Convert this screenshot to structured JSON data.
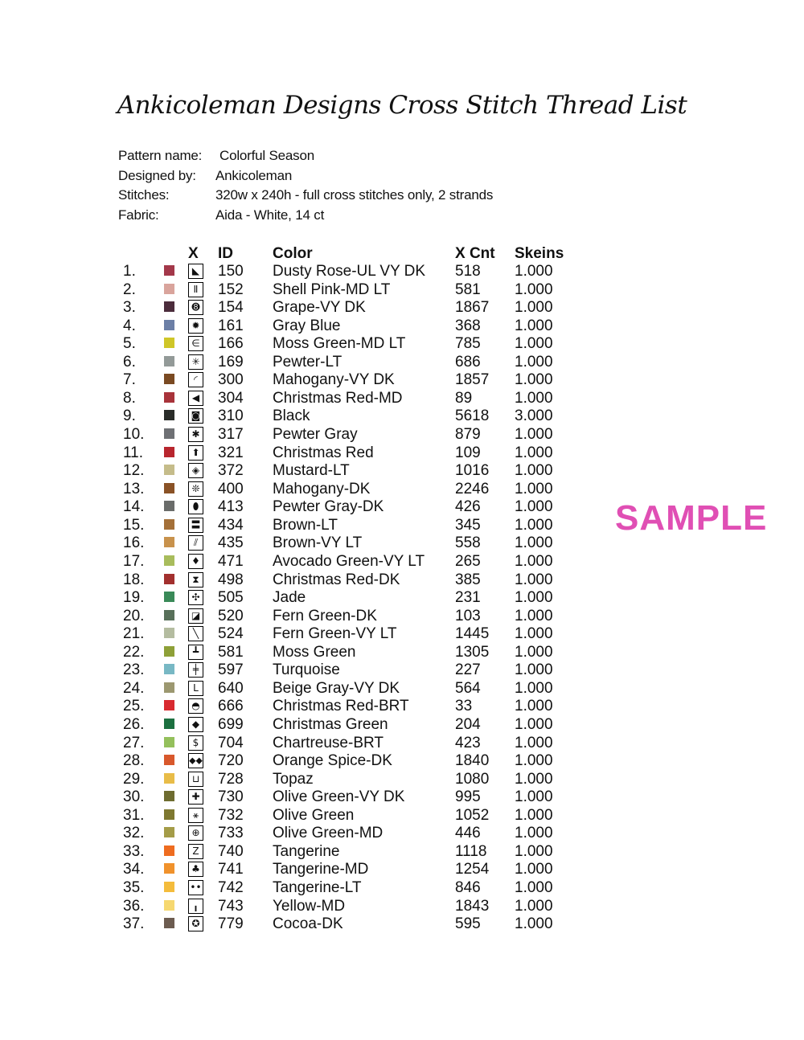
{
  "title": "Ankicoleman Designs Cross Stitch Thread List",
  "meta": [
    {
      "label": "Pattern name:",
      "value": "Colorful Season"
    },
    {
      "label": "Designed by:",
      "value": "Ankicoleman"
    },
    {
      "label": "Stitches:",
      "value": "320w x 240h - full cross stitches only, 2 strands"
    },
    {
      "label": "Fabric:",
      "value": "Aida - White, 14 ct"
    }
  ],
  "headers": {
    "symbol": "X",
    "id": "ID",
    "color": "Color",
    "count": "X Cnt",
    "skeins": "Skeins"
  },
  "watermark": "SAMPLE",
  "rows": [
    {
      "n": "1.",
      "swatch": "#a3384a",
      "symbol": "◣",
      "id": "150",
      "name": "Dusty Rose-UL VY DK",
      "count": "518",
      "skeins": "1.000"
    },
    {
      "n": "2.",
      "swatch": "#d9a49c",
      "symbol": "Ⅱ",
      "id": "152",
      "name": "Shell Pink-MD LT",
      "count": "581",
      "skeins": "1.000"
    },
    {
      "n": "3.",
      "swatch": "#4c2c3c",
      "symbol": "➑",
      "id": "154",
      "name": "Grape-VY DK",
      "count": "1867",
      "skeins": "1.000"
    },
    {
      "n": "4.",
      "swatch": "#6c7fa6",
      "symbol": "✹",
      "id": "161",
      "name": "Gray Blue",
      "count": "368",
      "skeins": "1.000"
    },
    {
      "n": "5.",
      "swatch": "#cfc628",
      "symbol": "∈",
      "id": "166",
      "name": "Moss Green-MD LT",
      "count": "785",
      "skeins": "1.000"
    },
    {
      "n": "6.",
      "swatch": "#939a98",
      "symbol": "✳",
      "id": "169",
      "name": "Pewter-LT",
      "count": "686",
      "skeins": "1.000"
    },
    {
      "n": "7.",
      "swatch": "#7a4a22",
      "symbol": "◜",
      "id": "300",
      "name": "Mahogany-VY DK",
      "count": "1857",
      "skeins": "1.000"
    },
    {
      "n": "8.",
      "swatch": "#a8333a",
      "symbol": "◀",
      "id": "304",
      "name": "Christmas Red-MD",
      "count": "89",
      "skeins": "1.000"
    },
    {
      "n": "9.",
      "swatch": "#2a2c29",
      "symbol": "◙",
      "id": "310",
      "name": "Black",
      "count": "5618",
      "skeins": "3.000"
    },
    {
      "n": "10.",
      "swatch": "#6e7074",
      "symbol": "✱",
      "id": "317",
      "name": "Pewter Gray",
      "count": "879",
      "skeins": "1.000"
    },
    {
      "n": "11.",
      "swatch": "#b8262e",
      "symbol": "⬆",
      "id": "321",
      "name": "Christmas Red",
      "count": "109",
      "skeins": "1.000"
    },
    {
      "n": "12.",
      "swatch": "#c5bc8a",
      "symbol": "◈",
      "id": "372",
      "name": "Mustard-LT",
      "count": "1016",
      "skeins": "1.000"
    },
    {
      "n": "13.",
      "swatch": "#8a5226",
      "symbol": "❊",
      "id": "400",
      "name": "Mahogany-DK",
      "count": "2246",
      "skeins": "1.000"
    },
    {
      "n": "14.",
      "swatch": "#6a6c6a",
      "symbol": "⬮",
      "id": "413",
      "name": "Pewter Gray-DK",
      "count": "426",
      "skeins": "1.000"
    },
    {
      "n": "15.",
      "swatch": "#a47038",
      "symbol": "〓",
      "id": "434",
      "name": "Brown-LT",
      "count": "345",
      "skeins": "1.000"
    },
    {
      "n": "16.",
      "swatch": "#c8924c",
      "symbol": "⫽",
      "id": "435",
      "name": "Brown-VY LT",
      "count": "558",
      "skeins": "1.000"
    },
    {
      "n": "17.",
      "swatch": "#a8bc5c",
      "symbol": "♦",
      "id": "471",
      "name": "Avocado Green-VY LT",
      "count": "265",
      "skeins": "1.000"
    },
    {
      "n": "18.",
      "swatch": "#a2302e",
      "symbol": "⧗",
      "id": "498",
      "name": "Christmas Red-DK",
      "count": "385",
      "skeins": "1.000"
    },
    {
      "n": "19.",
      "swatch": "#3a8a58",
      "symbol": "✣",
      "id": "505",
      "name": "Jade",
      "count": "231",
      "skeins": "1.000"
    },
    {
      "n": "20.",
      "swatch": "#58705a",
      "symbol": "◪",
      "id": "520",
      "name": "Fern Green-DK",
      "count": "103",
      "skeins": "1.000"
    },
    {
      "n": "21.",
      "swatch": "#b4bca0",
      "symbol": "╲",
      "id": "524",
      "name": "Fern Green-VY LT",
      "count": "1445",
      "skeins": "1.000"
    },
    {
      "n": "22.",
      "swatch": "#8ea038",
      "symbol": "┻",
      "id": "581",
      "name": "Moss Green",
      "count": "1305",
      "skeins": "1.000"
    },
    {
      "n": "23.",
      "swatch": "#78b8c4",
      "symbol": "╪",
      "id": "597",
      "name": "Turquoise",
      "count": "227",
      "skeins": "1.000"
    },
    {
      "n": "24.",
      "swatch": "#9c9870",
      "symbol": "L",
      "id": "640",
      "name": "Beige Gray-VY DK",
      "count": "564",
      "skeins": "1.000"
    },
    {
      "n": "25.",
      "swatch": "#d82a30",
      "symbol": "◓",
      "id": "666",
      "name": "Christmas Red-BRT",
      "count": "33",
      "skeins": "1.000"
    },
    {
      "n": "26.",
      "swatch": "#1c7040",
      "symbol": "◆",
      "id": "699",
      "name": "Christmas Green",
      "count": "204",
      "skeins": "1.000"
    },
    {
      "n": "27.",
      "swatch": "#94c05c",
      "symbol": "$",
      "id": "704",
      "name": "Chartreuse-BRT",
      "count": "423",
      "skeins": "1.000"
    },
    {
      "n": "28.",
      "swatch": "#d8582c",
      "symbol": "⬥⬥",
      "id": "720",
      "name": "Orange Spice-DK",
      "count": "1840",
      "skeins": "1.000"
    },
    {
      "n": "29.",
      "swatch": "#e8bc48",
      "symbol": "⊔",
      "id": "728",
      "name": "Topaz",
      "count": "1080",
      "skeins": "1.000"
    },
    {
      "n": "30.",
      "swatch": "#6e6c30",
      "symbol": "✚",
      "id": "730",
      "name": "Olive Green-VY DK",
      "count": "995",
      "skeins": "1.000"
    },
    {
      "n": "31.",
      "swatch": "#7e7830",
      "symbol": "⚹",
      "id": "732",
      "name": "Olive Green",
      "count": "1052",
      "skeins": "1.000"
    },
    {
      "n": "32.",
      "swatch": "#a49c48",
      "symbol": "⊕",
      "id": "733",
      "name": "Olive Green-MD",
      "count": "446",
      "skeins": "1.000"
    },
    {
      "n": "33.",
      "swatch": "#ee6c20",
      "symbol": "Z",
      "id": "740",
      "name": "Tangerine",
      "count": "1118",
      "skeins": "1.000"
    },
    {
      "n": "34.",
      "swatch": "#f0922c",
      "symbol": "♣",
      "id": "741",
      "name": "Tangerine-MD",
      "count": "1254",
      "skeins": "1.000"
    },
    {
      "n": "35.",
      "swatch": "#f4bc3c",
      "symbol": "••",
      "id": "742",
      "name": "Tangerine-LT",
      "count": "846",
      "skeins": "1.000"
    },
    {
      "n": "36.",
      "swatch": "#f6d870",
      "symbol": "╻",
      "id": "743",
      "name": "Yellow-MD",
      "count": "1843",
      "skeins": "1.000"
    },
    {
      "n": "37.",
      "swatch": "#6c5c50",
      "symbol": "✪",
      "id": "779",
      "name": "Cocoa-DK",
      "count": "595",
      "skeins": "1.000"
    }
  ]
}
